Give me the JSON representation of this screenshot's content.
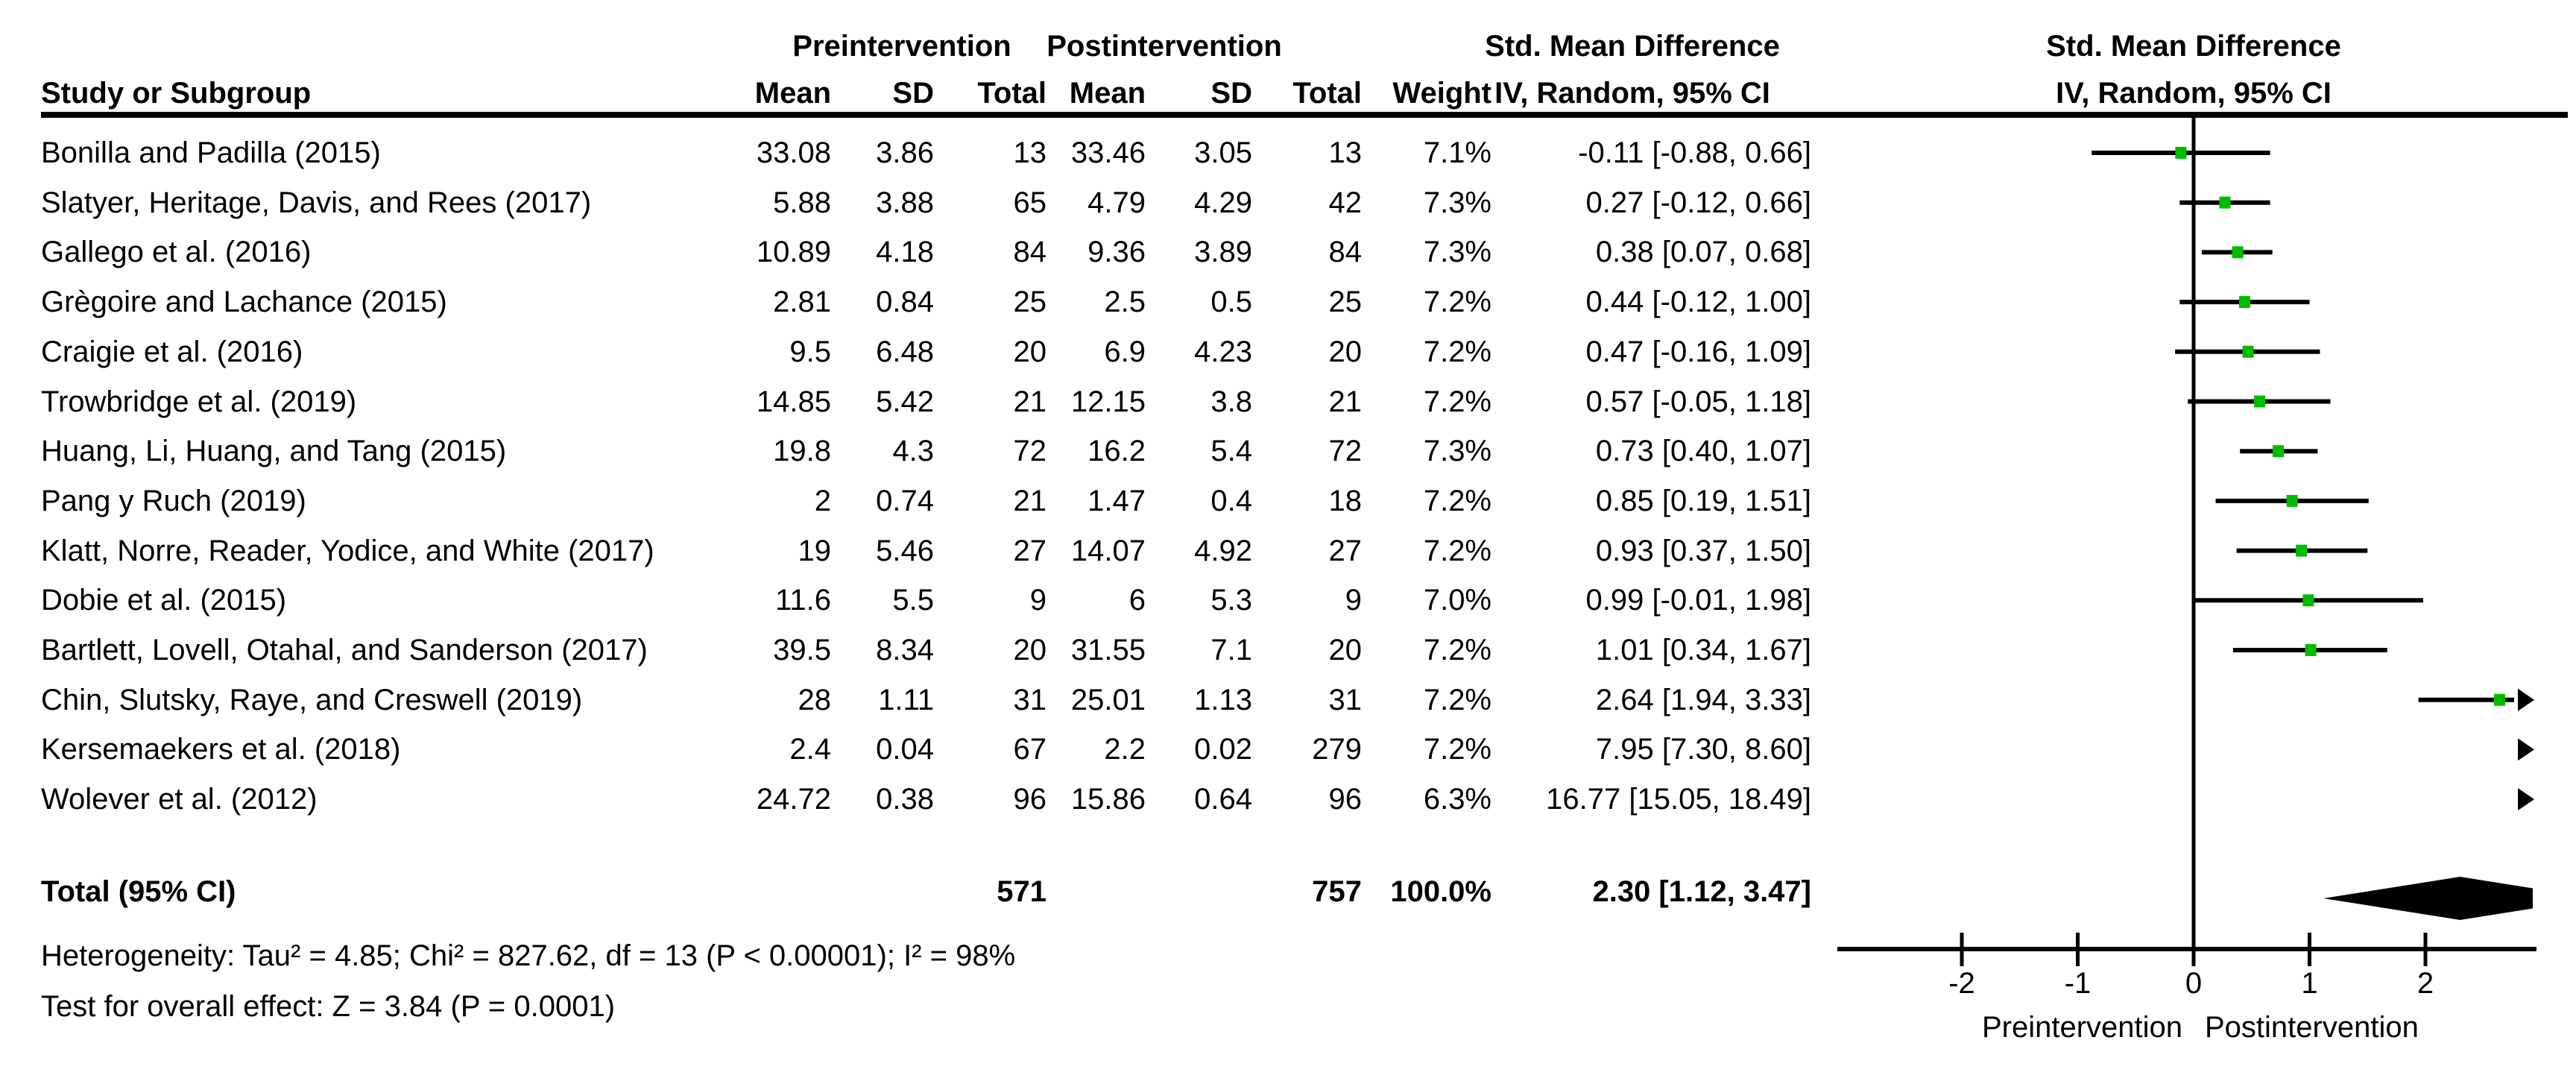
{
  "table": {
    "headers": {
      "study": "Study or Subgroup",
      "group1": "Preintervention",
      "group2": "Postintervention",
      "mean": "Mean",
      "sd": "SD",
      "total": "Total",
      "weight": "Weight",
      "smd": "Std. Mean Difference",
      "method": "IV, Random, 95% CI"
    },
    "rows": [
      {
        "study": "Bonilla and Padilla (2015)",
        "mean1": "33.08",
        "sd1": "3.86",
        "n1": "13",
        "mean2": "33.46",
        "sd2": "3.05",
        "n2": "13",
        "weight": "7.1%",
        "ci": "-0.11 [-0.88, 0.66]"
      },
      {
        "study": "Slatyer, Heritage, Davis, and Rees (2017)",
        "mean1": "5.88",
        "sd1": "3.88",
        "n1": "65",
        "mean2": "4.79",
        "sd2": "4.29",
        "n2": "42",
        "weight": "7.3%",
        "ci": "0.27 [-0.12, 0.66]"
      },
      {
        "study": "Gallego et al. (2016)",
        "mean1": "10.89",
        "sd1": "4.18",
        "n1": "84",
        "mean2": "9.36",
        "sd2": "3.89",
        "n2": "84",
        "weight": "7.3%",
        "ci": "0.38 [0.07, 0.68]"
      },
      {
        "study": "Grègoire and Lachance (2015)",
        "mean1": "2.81",
        "sd1": "0.84",
        "n1": "25",
        "mean2": "2.5",
        "sd2": "0.5",
        "n2": "25",
        "weight": "7.2%",
        "ci": "0.44 [-0.12, 1.00]"
      },
      {
        "study": "Craigie et al. (2016)",
        "mean1": "9.5",
        "sd1": "6.48",
        "n1": "20",
        "mean2": "6.9",
        "sd2": "4.23",
        "n2": "20",
        "weight": "7.2%",
        "ci": "0.47 [-0.16, 1.09]"
      },
      {
        "study": "Trowbridge et al. (2019)",
        "mean1": "14.85",
        "sd1": "5.42",
        "n1": "21",
        "mean2": "12.15",
        "sd2": "3.8",
        "n2": "21",
        "weight": "7.2%",
        "ci": "0.57 [-0.05, 1.18]"
      },
      {
        "study": "Huang, Li, Huang, and Tang (2015)",
        "mean1": "19.8",
        "sd1": "4.3",
        "n1": "72",
        "mean2": "16.2",
        "sd2": "5.4",
        "n2": "72",
        "weight": "7.3%",
        "ci": "0.73 [0.40, 1.07]"
      },
      {
        "study": "Pang y Ruch (2019)",
        "mean1": "2",
        "sd1": "0.74",
        "n1": "21",
        "mean2": "1.47",
        "sd2": "0.4",
        "n2": "18",
        "weight": "7.2%",
        "ci": "0.85 [0.19, 1.51]"
      },
      {
        "study": "Klatt, Norre, Reader, Yodice, and White (2017)",
        "mean1": "19",
        "sd1": "5.46",
        "n1": "27",
        "mean2": "14.07",
        "sd2": "4.92",
        "n2": "27",
        "weight": "7.2%",
        "ci": "0.93 [0.37, 1.50]"
      },
      {
        "study": "Dobie et al. (2015)",
        "mean1": "11.6",
        "sd1": "5.5",
        "n1": "9",
        "mean2": "6",
        "sd2": "5.3",
        "n2": "9",
        "weight": "7.0%",
        "ci": "0.99 [-0.01, 1.98]"
      },
      {
        "study": "Bartlett, Lovell, Otahal, and Sanderson (2017)",
        "mean1": "39.5",
        "sd1": "8.34",
        "n1": "20",
        "mean2": "31.55",
        "sd2": "7.1",
        "n2": "20",
        "weight": "7.2%",
        "ci": "1.01 [0.34, 1.67]"
      },
      {
        "study": "Chin, Slutsky, Raye, and Creswell (2019)",
        "mean1": "28",
        "sd1": "1.11",
        "n1": "31",
        "mean2": "25.01",
        "sd2": "1.13",
        "n2": "31",
        "weight": "7.2%",
        "ci": "2.64 [1.94, 3.33]"
      },
      {
        "study": "Kersemaekers et al. (2018)",
        "mean1": "2.4",
        "sd1": "0.04",
        "n1": "67",
        "mean2": "2.2",
        "sd2": "0.02",
        "n2": "279",
        "weight": "7.2%",
        "ci": "7.95 [7.30, 8.60]"
      },
      {
        "study": "Wolever et al. (2012)",
        "mean1": "24.72",
        "sd1": "0.38",
        "n1": "96",
        "mean2": "15.86",
        "sd2": "0.64",
        "n2": "96",
        "weight": "6.3%",
        "ci": "16.77 [15.05, 18.49]"
      }
    ],
    "total": {
      "label": "Total (95% CI)",
      "n1": "571",
      "n2": "757",
      "weight": "100.0%",
      "ci": "2.30 [1.12, 3.47]"
    },
    "heterogeneity": "Heterogeneity: Tau² = 4.85; Chi² = 827.62, df = 13 (P < 0.00001); I² = 98%",
    "overall_effect": "Test for overall effect: Z = 3.84 (P = 0.0001)"
  },
  "chart_data": {
    "type": "scatter",
    "subtype": "forest-plot",
    "title": "Std. Mean Difference",
    "subtitle": "IV, Random, 95% CI",
    "xlim": [
      -3.07,
      2.96
    ],
    "ticks": [
      -2,
      -1,
      0,
      1,
      2
    ],
    "tick_labels": [
      "-2",
      "-1",
      "0",
      "1",
      "2"
    ],
    "favours_left": "Preintervention",
    "favours_right": "Postintervention",
    "marker_color": "#00bc00",
    "line_color": "#000000",
    "studies": [
      {
        "name": "Bonilla and Padilla (2015)",
        "est": -0.11,
        "lo": -0.88,
        "hi": 0.66
      },
      {
        "name": "Slatyer, Heritage, Davis, and Rees (2017)",
        "est": 0.27,
        "lo": -0.12,
        "hi": 0.66
      },
      {
        "name": "Gallego et al. (2016)",
        "est": 0.38,
        "lo": 0.07,
        "hi": 0.68
      },
      {
        "name": "Grègoire and Lachance (2015)",
        "est": 0.44,
        "lo": -0.12,
        "hi": 1.0
      },
      {
        "name": "Craigie et al. (2016)",
        "est": 0.47,
        "lo": -0.16,
        "hi": 1.09
      },
      {
        "name": "Trowbridge et al. (2019)",
        "est": 0.57,
        "lo": -0.05,
        "hi": 1.18
      },
      {
        "name": "Huang, Li, Huang, and Tang (2015)",
        "est": 0.73,
        "lo": 0.4,
        "hi": 1.07
      },
      {
        "name": "Pang y Ruch (2019)",
        "est": 0.85,
        "lo": 0.19,
        "hi": 1.51
      },
      {
        "name": "Klatt, Norre, Reader, Yodice, and White (2017)",
        "est": 0.93,
        "lo": 0.37,
        "hi": 1.5
      },
      {
        "name": "Dobie et al. (2015)",
        "est": 0.99,
        "lo": -0.01,
        "hi": 1.98
      },
      {
        "name": "Bartlett, Lovell, Otahal, and Sanderson (2017)",
        "est": 1.01,
        "lo": 0.34,
        "hi": 1.67
      },
      {
        "name": "Chin, Slutsky, Raye, and Creswell (2019)",
        "est": 2.64,
        "lo": 1.94,
        "hi": 3.33
      },
      {
        "name": "Kersemaekers et al. (2018)",
        "est": 7.95,
        "lo": 7.3,
        "hi": 8.6
      },
      {
        "name": "Wolever et al. (2012)",
        "est": 16.77,
        "lo": 15.05,
        "hi": 18.49
      }
    ],
    "total": {
      "est": 2.3,
      "lo": 1.12,
      "hi": 3.47
    }
  }
}
